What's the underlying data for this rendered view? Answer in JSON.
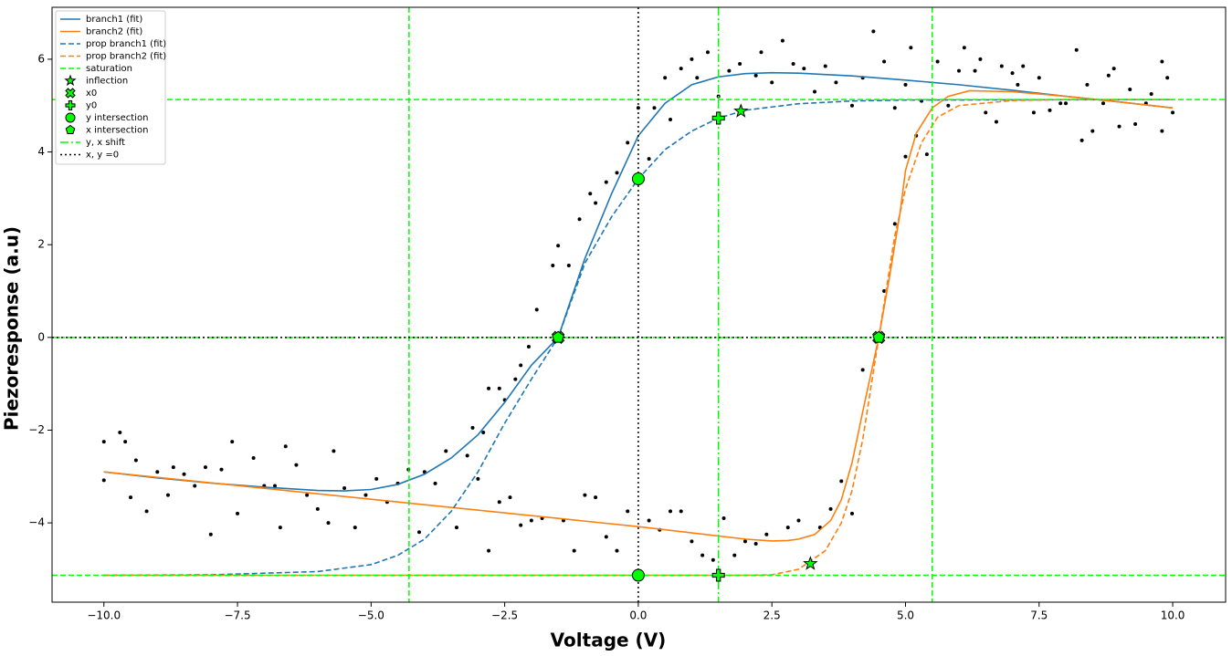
{
  "chart_data": {
    "type": "line",
    "x_label": "Voltage (V)",
    "y_label": "Piezoresponse (a.u)",
    "xlim": [
      -10.97,
      10.99
    ],
    "ylim": [
      -5.71,
      7.12
    ],
    "xticks": [
      {
        "value": -10,
        "label": "−10.0"
      },
      {
        "value": -7.5,
        "label": "−7.5"
      },
      {
        "value": -5,
        "label": "−5.0"
      },
      {
        "value": -2.5,
        "label": "−2.5"
      },
      {
        "value": 0,
        "label": "0.0"
      },
      2.5,
      {
        "value": 5,
        "label": "5.0"
      },
      7.5,
      {
        "value": 10,
        "label": "10.0"
      }
    ],
    "yticks": [
      {
        "value": -4,
        "label": "−4"
      },
      {
        "value": -2,
        "label": "−2"
      },
      0,
      2,
      4,
      6
    ],
    "legend": "upper left",
    "points": {
      "color": "#000000",
      "x": [
        -10,
        -10,
        -9.7,
        -9.6,
        -9.5,
        -9.4,
        -9.2,
        -9,
        -8.8,
        -8.7,
        -8.5,
        -8.3,
        -8.1,
        -8,
        -7.8,
        -7.6,
        -7.5,
        -7.2,
        -7,
        -6.8,
        -6.7,
        -6.6,
        -6.4,
        -6.2,
        -6,
        -5.8,
        -5.7,
        -5.5,
        -5.3,
        -5.1,
        -4.9,
        -4.7,
        -4.5,
        -4.3,
        -4.1,
        -4,
        -3.8,
        -3.6,
        -3.4,
        -3.2,
        -3,
        -2.9,
        -2.8,
        -2.6,
        -2.4,
        -2.2,
        -2,
        -1.8,
        -1.4,
        -1.2,
        -1,
        -0.8,
        -0.6,
        -0.4,
        -0.2,
        0.2,
        0.4,
        0.6,
        0.8,
        1,
        1.2,
        1.4,
        1.6,
        1.8,
        2,
        2.2,
        2.4,
        2.8,
        3,
        3.4,
        3.6,
        3.8,
        4,
        4.2,
        4.6,
        4.8,
        5,
        5.2,
        5.3,
        5.4,
        -3.1,
        -2.8,
        -2.6,
        -2.5,
        -2.3,
        -2.2,
        -2.05,
        -1.9,
        -1.6,
        -1.5,
        -1.3,
        -1.1,
        -0.9,
        -0.8,
        -0.6,
        -0.4,
        -0.2,
        0,
        0.2,
        0.3,
        0.5,
        0.6,
        0.8,
        1,
        1.1,
        1.3,
        1.5,
        1.7,
        1.9,
        2.2,
        2.3,
        2.5,
        2.7,
        2.9,
        3.1,
        3.3,
        3.5,
        3.7,
        4,
        4.2,
        4.4,
        4.6,
        4.8,
        5,
        5.1,
        5.6,
        5.8,
        6,
        6.1,
        6.3,
        6.4,
        6.5,
        6.7,
        6.8,
        7,
        7.1,
        7.2,
        7.4,
        7.5,
        7.7,
        7.9,
        8,
        8.2,
        8.3,
        8.4,
        8.5,
        8.7,
        8.8,
        8.9,
        9,
        9.2,
        9.3,
        9.5,
        9.6,
        9.8,
        9.9,
        10,
        9.8
      ],
      "values": [
        -2.25,
        -3.08,
        -2.05,
        -2.25,
        -3.45,
        -2.65,
        -3.75,
        -2.9,
        -3.4,
        -2.8,
        -2.95,
        -3.2,
        -2.8,
        -4.25,
        -2.85,
        -2.25,
        -3.8,
        -2.6,
        -3.2,
        -3.2,
        -4.1,
        -2.35,
        -2.75,
        -3.4,
        -3.7,
        -4,
        -2.45,
        -3.25,
        -4.1,
        -3.4,
        -3.05,
        -3.55,
        -3.15,
        -2.85,
        -4.2,
        -2.9,
        -3.15,
        -2.45,
        -4.1,
        -2.55,
        -3.05,
        -2.05,
        -4.6,
        -3.55,
        -3.45,
        -4.05,
        -3.95,
        -3.9,
        -3.95,
        -4.6,
        -3.4,
        -3.45,
        -4.3,
        -4.6,
        -3.75,
        -3.95,
        -4.15,
        -3.75,
        -3.75,
        -4.4,
        -4.7,
        -4.8,
        -3.9,
        -4.7,
        -4.4,
        -4.45,
        -4.25,
        -4.1,
        -3.95,
        -4.1,
        -3.7,
        -3.1,
        -3.8,
        -0.7,
        1,
        2.45,
        3.9,
        4.35,
        5.1,
        3.95,
        -1.95,
        -1.1,
        -1.1,
        -1.35,
        -0.9,
        -0.6,
        -0.2,
        0.6,
        1.55,
        1.98,
        1.55,
        2.55,
        3.1,
        2.9,
        3.35,
        3.55,
        4.2,
        4.95,
        3.85,
        4.95,
        5.6,
        4.7,
        5.8,
        6,
        5.6,
        6.15,
        5.2,
        5.75,
        5.9,
        5.65,
        6.15,
        5.5,
        6.4,
        5.9,
        5.8,
        5.3,
        5.85,
        5.5,
        5,
        5.6,
        6.6,
        5.95,
        4.95,
        5.45,
        6.25,
        5.95,
        5,
        5.75,
        6.25,
        5.75,
        6,
        4.85,
        4.65,
        5.85,
        5.7,
        5.45,
        5.85,
        4.85,
        5.6,
        4.9,
        5.05,
        5.05,
        6.2,
        4.25,
        5.45,
        4.45,
        5.05,
        5.65,
        5.8,
        4.55,
        5.35,
        4.6,
        5.05,
        5.25,
        5.95,
        5.6,
        4.85,
        4.45
      ]
    },
    "series": [
      {
        "name": "branch1 (fit)",
        "kind": "line",
        "color": "#1f77b4",
        "dash": "solid",
        "x": [
          -10,
          -9,
          -8,
          -7,
          -6,
          -5.5,
          -5,
          -4.5,
          -4,
          -3.5,
          -3,
          -2.5,
          -2,
          -1.5,
          -1,
          -0.5,
          0,
          0.5,
          1,
          1.5,
          2,
          2.5,
          3,
          4,
          5,
          6,
          7,
          8,
          9,
          10
        ],
        "values": [
          -2.9,
          -3.03,
          -3.14,
          -3.23,
          -3.3,
          -3.31,
          -3.28,
          -3.17,
          -2.95,
          -2.6,
          -2.1,
          -1.4,
          -0.6,
          0,
          1.7,
          3.1,
          4.35,
          5.05,
          5.45,
          5.62,
          5.69,
          5.71,
          5.7,
          5.64,
          5.55,
          5.45,
          5.33,
          5.2,
          5.08,
          4.95
        ]
      },
      {
        "name": "branch2 (fit)",
        "kind": "line",
        "color": "#ff7f0e",
        "dash": "solid",
        "x": [
          -10,
          -5,
          0,
          2,
          2.5,
          2.8,
          3,
          3.3,
          3.6,
          3.8,
          4,
          4.2,
          4.5,
          4.7,
          4.9,
          5,
          5.2,
          5.5,
          5.8,
          6.2,
          7,
          8,
          9,
          10
        ],
        "values": [
          -2.9,
          -3.49,
          -4.08,
          -4.35,
          -4.39,
          -4.38,
          -4.35,
          -4.25,
          -3.95,
          -3.5,
          -2.7,
          -1.6,
          0,
          1.3,
          2.7,
          3.6,
          4.4,
          4.95,
          5.2,
          5.32,
          5.3,
          5.2,
          5.08,
          4.95
        ]
      },
      {
        "name": "prop branch1 (fit)",
        "kind": "line",
        "color": "#1f77b4",
        "dash": "dashed",
        "x": [
          -10,
          -8,
          -6,
          -5,
          -4.5,
          -4,
          -3.5,
          -3,
          -2.5,
          -2,
          -1.5,
          -1,
          -0.5,
          0,
          0.5,
          1,
          1.5,
          2,
          3,
          4,
          5,
          10
        ],
        "values": [
          -5.13,
          -5.12,
          -5.05,
          -4.9,
          -4.7,
          -4.35,
          -3.75,
          -2.9,
          -1.85,
          -0.9,
          0,
          1.6,
          2.6,
          3.42,
          4.05,
          4.45,
          4.73,
          4.9,
          5.04,
          5.1,
          5.12,
          5.13
        ]
      },
      {
        "name": "prop branch2 (fit)",
        "kind": "line",
        "color": "#ff7f0e",
        "dash": "dashed",
        "x": [
          -10,
          2,
          2.5,
          3,
          3.5,
          3.8,
          4,
          4.2,
          4.5,
          4.8,
          5,
          5.3,
          5.6,
          6,
          7,
          8,
          10
        ],
        "values": [
          -5.13,
          -5.13,
          -5.12,
          -5,
          -4.6,
          -4,
          -3.3,
          -2.2,
          0,
          2.2,
          3.2,
          4.2,
          4.75,
          5,
          5.11,
          5.13,
          5.13
        ]
      },
      {
        "name": "saturation",
        "kind": "ref",
        "color": "#00ff00",
        "dash": "dashed",
        "hlines": [
          5.13,
          -5.13
        ],
        "vlines": [
          -4.29,
          5.5
        ]
      },
      {
        "name": "inflection",
        "kind": "marker",
        "marker": "star",
        "color": "#00ff00",
        "x": [
          1.92,
          3.22
        ],
        "values": [
          4.88,
          -4.88
        ]
      },
      {
        "name": "x0",
        "kind": "marker",
        "marker": "x",
        "color": "#00ff00",
        "x": [
          -1.5,
          4.5
        ],
        "values": [
          0,
          0
        ]
      },
      {
        "name": "y0",
        "kind": "marker",
        "marker": "plus",
        "color": "#00ff00",
        "x": [
          1.5,
          1.5
        ],
        "values": [
          4.73,
          -5.13
        ]
      },
      {
        "name": "y intersection",
        "kind": "marker",
        "marker": "circle",
        "color": "#00ff00",
        "x": [
          0,
          0
        ],
        "values": [
          3.42,
          -5.13
        ]
      },
      {
        "name": "x intersection",
        "kind": "marker",
        "marker": "pentagon",
        "color": "#00ff00",
        "x": [
          -1.5,
          4.5
        ],
        "values": [
          0,
          0
        ]
      },
      {
        "name": "y, x shift",
        "kind": "ref",
        "color": "#00ff00",
        "dash": "dashdot",
        "hlines": [
          0
        ],
        "vlines": [
          1.5
        ]
      },
      {
        "name": "x, y =0",
        "kind": "ref",
        "color": "#000000",
        "dash": "dotted",
        "hlines": [
          0
        ],
        "vlines": [
          0
        ]
      }
    ]
  }
}
